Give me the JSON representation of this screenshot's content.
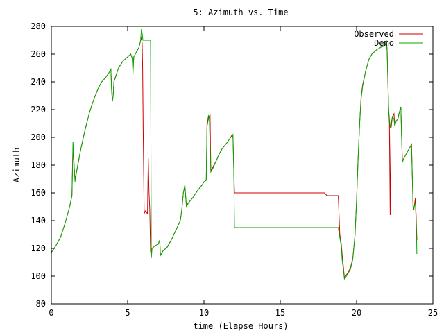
{
  "chart_data": {
    "type": "line",
    "title": "5: Azimuth vs. Time",
    "xlabel": "time (Elapse Hours)",
    "ylabel": "Azimuth",
    "xlim": [
      0,
      25
    ],
    "ylim": [
      80,
      280
    ],
    "xticks": [
      0,
      5,
      10,
      15,
      20,
      25
    ],
    "yticks": [
      80,
      100,
      120,
      140,
      160,
      180,
      200,
      220,
      240,
      260,
      280
    ],
    "grid": false,
    "legend_position": "top-right",
    "series": [
      {
        "name": "Observed",
        "color": "#cc0000",
        "points": [
          [
            0.0,
            117
          ],
          [
            0.3,
            122
          ],
          [
            0.6,
            128
          ],
          [
            0.9,
            138
          ],
          [
            1.2,
            150
          ],
          [
            1.35,
            158
          ],
          [
            1.42,
            193
          ],
          [
            1.5,
            178
          ],
          [
            1.55,
            170
          ],
          [
            1.65,
            175
          ],
          [
            1.9,
            190
          ],
          [
            2.2,
            205
          ],
          [
            2.5,
            218
          ],
          [
            2.8,
            228
          ],
          [
            3.1,
            236
          ],
          [
            3.3,
            240
          ],
          [
            3.55,
            243
          ],
          [
            3.8,
            247
          ],
          [
            3.9,
            249
          ],
          [
            3.95,
            234
          ],
          [
            4.0,
            226
          ],
          [
            4.05,
            230
          ],
          [
            4.1,
            240
          ],
          [
            4.4,
            250
          ],
          [
            4.7,
            255
          ],
          [
            5.0,
            258
          ],
          [
            5.2,
            260
          ],
          [
            5.3,
            257
          ],
          [
            5.35,
            248
          ],
          [
            5.4,
            258
          ],
          [
            5.6,
            262
          ],
          [
            5.75,
            265
          ],
          [
            5.85,
            270
          ],
          [
            5.9,
            272
          ],
          [
            5.95,
            268
          ],
          [
            5.98,
            250
          ],
          [
            6.02,
            205
          ],
          [
            6.08,
            145
          ],
          [
            6.15,
            147
          ],
          [
            6.3,
            145
          ],
          [
            6.35,
            185
          ],
          [
            6.4,
            160
          ],
          [
            6.45,
            148
          ],
          [
            6.5,
            118
          ],
          [
            6.6,
            120
          ],
          [
            6.8,
            122
          ],
          [
            7.0,
            123
          ],
          [
            7.1,
            126
          ],
          [
            7.15,
            115
          ],
          [
            7.3,
            118
          ],
          [
            7.6,
            121
          ],
          [
            7.9,
            127
          ],
          [
            8.2,
            134
          ],
          [
            8.45,
            140
          ],
          [
            8.55,
            148
          ],
          [
            8.65,
            160
          ],
          [
            8.75,
            164
          ],
          [
            8.85,
            151
          ],
          [
            9.0,
            153
          ],
          [
            9.3,
            157
          ],
          [
            9.6,
            162
          ],
          [
            9.9,
            166
          ],
          [
            10.0,
            168
          ],
          [
            10.15,
            169
          ],
          [
            10.2,
            208
          ],
          [
            10.3,
            214
          ],
          [
            10.4,
            216
          ],
          [
            10.45,
            176
          ],
          [
            10.6,
            179
          ],
          [
            10.8,
            183
          ],
          [
            11.0,
            188
          ],
          [
            11.2,
            192
          ],
          [
            11.5,
            196
          ],
          [
            11.75,
            200
          ],
          [
            11.85,
            202
          ],
          [
            11.9,
            200
          ],
          [
            11.95,
            178
          ],
          [
            12.0,
            160
          ],
          [
            13,
            160
          ],
          [
            14,
            160
          ],
          [
            15,
            160
          ],
          [
            16,
            160
          ],
          [
            17,
            160
          ],
          [
            17.9,
            160
          ],
          [
            18.05,
            158
          ],
          [
            18.2,
            158
          ],
          [
            18.8,
            158
          ],
          [
            18.9,
            130
          ],
          [
            19.0,
            123
          ],
          [
            19.05,
            116
          ],
          [
            19.15,
            105
          ],
          [
            19.2,
            99
          ],
          [
            19.4,
            102
          ],
          [
            19.6,
            106
          ],
          [
            19.75,
            113
          ],
          [
            19.9,
            130
          ],
          [
            20.0,
            155
          ],
          [
            20.1,
            185
          ],
          [
            20.2,
            210
          ],
          [
            20.3,
            230
          ],
          [
            20.4,
            238
          ],
          [
            20.6,
            248
          ],
          [
            20.8,
            256
          ],
          [
            21.0,
            260
          ],
          [
            21.3,
            263
          ],
          [
            21.6,
            265
          ],
          [
            21.85,
            266
          ],
          [
            21.95,
            268
          ],
          [
            22.0,
            262
          ],
          [
            22.05,
            240
          ],
          [
            22.1,
            220
          ],
          [
            22.15,
            210
          ],
          [
            22.2,
            144
          ],
          [
            22.25,
            206
          ],
          [
            22.35,
            215
          ],
          [
            22.45,
            217
          ],
          [
            22.5,
            208
          ],
          [
            22.6,
            212
          ],
          [
            22.7,
            213
          ],
          [
            22.8,
            218
          ],
          [
            22.9,
            222
          ],
          [
            22.95,
            200
          ],
          [
            23.0,
            183
          ],
          [
            23.1,
            185
          ],
          [
            23.3,
            189
          ],
          [
            23.5,
            193
          ],
          [
            23.6,
            195
          ],
          [
            23.7,
            150
          ],
          [
            23.75,
            148
          ],
          [
            23.85,
            156
          ],
          [
            23.9,
            144
          ],
          [
            23.95,
            126
          ]
        ]
      },
      {
        "name": "Demo",
        "color": "#00aa00",
        "points": [
          [
            0.0,
            117
          ],
          [
            0.3,
            122
          ],
          [
            0.6,
            128
          ],
          [
            0.9,
            138
          ],
          [
            1.2,
            150
          ],
          [
            1.35,
            158
          ],
          [
            1.42,
            197
          ],
          [
            1.5,
            178
          ],
          [
            1.55,
            168
          ],
          [
            1.65,
            175
          ],
          [
            1.9,
            190
          ],
          [
            2.2,
            205
          ],
          [
            2.5,
            218
          ],
          [
            2.8,
            228
          ],
          [
            3.1,
            236
          ],
          [
            3.3,
            240
          ],
          [
            3.55,
            243
          ],
          [
            3.8,
            247
          ],
          [
            3.9,
            249
          ],
          [
            3.95,
            234
          ],
          [
            4.0,
            226
          ],
          [
            4.05,
            230
          ],
          [
            4.1,
            240
          ],
          [
            4.4,
            250
          ],
          [
            4.7,
            255
          ],
          [
            5.0,
            258
          ],
          [
            5.2,
            260
          ],
          [
            5.3,
            257
          ],
          [
            5.35,
            246
          ],
          [
            5.4,
            258
          ],
          [
            5.6,
            262
          ],
          [
            5.75,
            265
          ],
          [
            5.85,
            270
          ],
          [
            5.9,
            278
          ],
          [
            5.95,
            275
          ],
          [
            6.0,
            270
          ],
          [
            6.2,
            270
          ],
          [
            6.5,
            270
          ],
          [
            6.55,
            113
          ],
          [
            6.6,
            120
          ],
          [
            6.8,
            122
          ],
          [
            7.0,
            123
          ],
          [
            7.1,
            126
          ],
          [
            7.15,
            115
          ],
          [
            7.3,
            118
          ],
          [
            7.6,
            121
          ],
          [
            7.9,
            127
          ],
          [
            8.2,
            134
          ],
          [
            8.45,
            140
          ],
          [
            8.55,
            148
          ],
          [
            8.65,
            160
          ],
          [
            8.75,
            166
          ],
          [
            8.85,
            150
          ],
          [
            9.0,
            153
          ],
          [
            9.3,
            157
          ],
          [
            9.6,
            162
          ],
          [
            9.9,
            166
          ],
          [
            10.0,
            168
          ],
          [
            10.15,
            169
          ],
          [
            10.2,
            210
          ],
          [
            10.3,
            216
          ],
          [
            10.35,
            214
          ],
          [
            10.45,
            175
          ],
          [
            10.6,
            178
          ],
          [
            10.8,
            183
          ],
          [
            11.0,
            188
          ],
          [
            11.2,
            192
          ],
          [
            11.5,
            196
          ],
          [
            11.75,
            200
          ],
          [
            11.85,
            201
          ],
          [
            11.9,
            202
          ],
          [
            11.95,
            180
          ],
          [
            12.0,
            135
          ],
          [
            13,
            135
          ],
          [
            14,
            135
          ],
          [
            15,
            135
          ],
          [
            16,
            135
          ],
          [
            17,
            135
          ],
          [
            18,
            135
          ],
          [
            18.8,
            135
          ],
          [
            18.9,
            128
          ],
          [
            19.0,
            121
          ],
          [
            19.05,
            112
          ],
          [
            19.15,
            103
          ],
          [
            19.2,
            98
          ],
          [
            19.4,
            101
          ],
          [
            19.6,
            105
          ],
          [
            19.75,
            112
          ],
          [
            19.9,
            130
          ],
          [
            20.0,
            155
          ],
          [
            20.1,
            185
          ],
          [
            20.2,
            210
          ],
          [
            20.3,
            228
          ],
          [
            20.4,
            237
          ],
          [
            20.6,
            248
          ],
          [
            20.8,
            256
          ],
          [
            21.0,
            260
          ],
          [
            21.3,
            263
          ],
          [
            21.6,
            265
          ],
          [
            21.85,
            266
          ],
          [
            21.95,
            270
          ],
          [
            22.0,
            264
          ],
          [
            22.1,
            220
          ],
          [
            22.2,
            207
          ],
          [
            22.35,
            215
          ],
          [
            22.45,
            213
          ],
          [
            22.5,
            208
          ],
          [
            22.6,
            212
          ],
          [
            22.7,
            213
          ],
          [
            22.8,
            218
          ],
          [
            22.9,
            222
          ],
          [
            22.95,
            200
          ],
          [
            23.0,
            182
          ],
          [
            23.1,
            185
          ],
          [
            23.3,
            189
          ],
          [
            23.5,
            193
          ],
          [
            23.6,
            194
          ],
          [
            23.7,
            151
          ],
          [
            23.75,
            149
          ],
          [
            23.85,
            153
          ],
          [
            23.9,
            140
          ],
          [
            23.95,
            116
          ]
        ]
      }
    ]
  }
}
